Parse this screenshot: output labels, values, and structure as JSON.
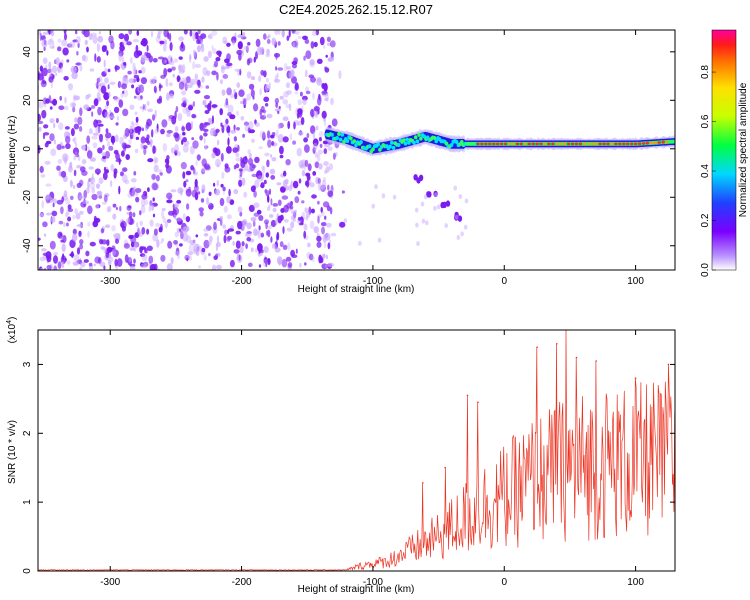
{
  "title": "C2E4.2025.262.15.12.R07",
  "colors": {
    "snr_line": "#ee3322",
    "scatter_bg": "#7a1cf0",
    "scatter_light": "#c9a6ff",
    "axis": "#000000"
  },
  "chart_data": [
    {
      "type": "heatmap",
      "title": "C2E4.2025.262.15.12.R07",
      "xlabel": "Height of straight line (km)",
      "ylabel": "Frequency (Hz)",
      "xlim": [
        -355,
        130
      ],
      "ylim": [
        -50,
        49
      ],
      "xticks": [
        -300,
        -200,
        -100,
        0,
        100
      ],
      "yticks": [
        -40,
        -20,
        0,
        20,
        40
      ],
      "xtick_labels": [
        "-300",
        "-200",
        "-100",
        "0",
        "100"
      ],
      "ytick_labels": [
        "-40",
        "-20",
        "0",
        "20",
        "40"
      ],
      "noise_region_km": [
        -355,
        -130
      ],
      "signal_track": {
        "x": [
          -135,
          -120,
          -100,
          -80,
          -60,
          -40,
          -20,
          0,
          20,
          60,
          100,
          130
        ],
        "freq_hz": [
          6,
          4,
          0,
          2,
          5,
          2,
          2,
          2,
          2,
          2,
          2,
          3
        ]
      },
      "side_branch": {
        "x": [
          -65,
          -55,
          -45,
          -35
        ],
        "freq_hz": [
          -12,
          -18,
          -23,
          -28
        ]
      },
      "colorbar": {
        "label": "Normalized spectral amplitude",
        "range": [
          0,
          0.97
        ],
        "ticks": [
          0.0,
          0.2,
          0.4,
          0.6,
          0.8
        ],
        "tick_labels": [
          "0.0",
          "0.2",
          "0.4",
          "0.6",
          "0.8"
        ]
      }
    },
    {
      "type": "line",
      "xlabel": "Height of straight line (km)",
      "ylabel": "SNR (10 * v/v)",
      "multiplier_base": "(x10",
      "multiplier_exp": "4",
      "multiplier_close": ")",
      "xlim": [
        -355,
        130
      ],
      "ylim": [
        0,
        3.5
      ],
      "xticks": [
        -300,
        -200,
        -100,
        0,
        100
      ],
      "yticks": [
        0,
        1,
        2,
        3
      ],
      "xtick_labels": [
        "-300",
        "-200",
        "-100",
        "0",
        "100"
      ],
      "ytick_labels": [
        "0",
        "1",
        "2",
        "3"
      ],
      "series": [
        {
          "name": "SNR",
          "trend_x": [
            -355,
            -120,
            -110,
            -100,
            -90,
            -80,
            -70,
            -60,
            -50,
            -40,
            -30,
            -20,
            -10,
            0,
            10,
            20,
            30,
            40,
            50,
            60,
            70,
            80,
            90,
            100,
            110,
            120,
            130
          ],
          "trend_y": [
            0.01,
            0.02,
            0.08,
            0.12,
            0.15,
            0.25,
            0.35,
            0.45,
            0.55,
            0.7,
            0.85,
            1.0,
            1.1,
            1.2,
            1.3,
            1.45,
            1.5,
            1.6,
            1.65,
            1.7,
            1.7,
            1.75,
            1.75,
            1.75,
            1.8,
            1.8,
            1.8
          ],
          "peaks_x": [
            -62,
            -45,
            -28,
            -20,
            25,
            40,
            47,
            55,
            70,
            100,
            125
          ],
          "peaks_y": [
            1.28,
            1.5,
            2.55,
            2.45,
            3.25,
            3.3,
            3.5,
            3.1,
            3.05,
            2.8,
            3.0
          ]
        }
      ]
    }
  ]
}
